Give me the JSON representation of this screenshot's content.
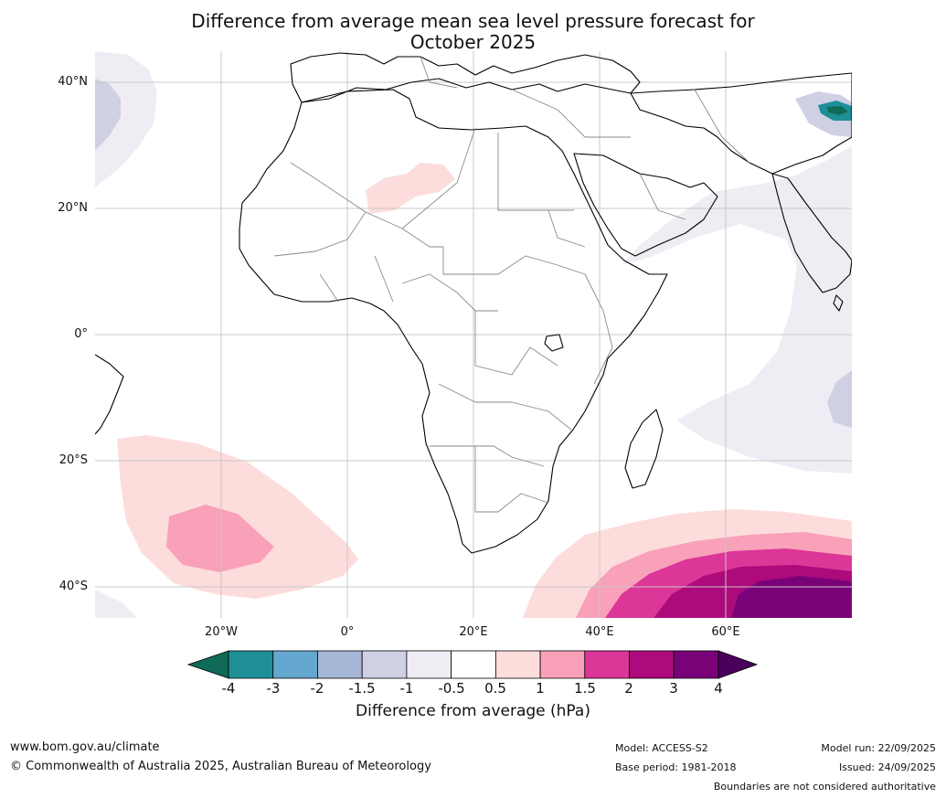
{
  "title_line1": "Difference from average mean sea level pressure forecast for",
  "title_line2": "October 2025",
  "latitude_labels": [
    "40°N",
    "20°N",
    "0°",
    "20°S",
    "40°S"
  ],
  "longitude_labels": [
    "20°W",
    "0°",
    "20°E",
    "40°E",
    "60°E"
  ],
  "colorbar": {
    "ticks": [
      "-4",
      "-3",
      "-2",
      "-1.5",
      "-1",
      "-0.5",
      "0.5",
      "1",
      "1.5",
      "2",
      "3",
      "4"
    ],
    "colors": [
      "#0f6b57",
      "#1e8f96",
      "#64a7cf",
      "#a6b6d6",
      "#cfd0e4",
      "#efecf4",
      "#ffffff",
      "#fddcdc",
      "#f8a1b8",
      "#dc3698",
      "#ad0a7c",
      "#7a0279",
      "#4a005a"
    ],
    "label": "Difference from average (hPa)"
  },
  "footer": {
    "url": "www.bom.gov.au/climate",
    "copyright": "© Commonwealth of Australia 2025, Australian Bureau of Meteorology",
    "model": "Model: ACCESS-S2",
    "base_period": "Base period: 1981-2018",
    "model_run": "Model run: 22/09/2025",
    "issued": "Issued: 24/09/2025",
    "disclaimer": "Boundaries are not considered authoritative"
  }
}
